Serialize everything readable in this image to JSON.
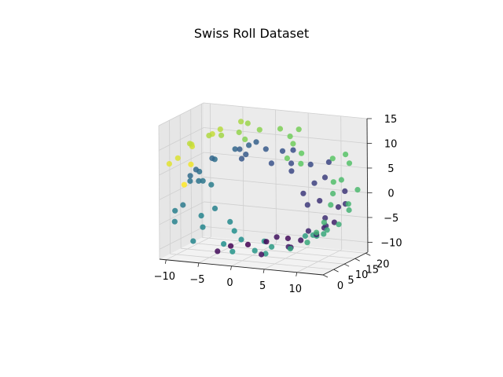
{
  "chart_data": {
    "type": "scatter",
    "projection": "3d",
    "title": "Swiss Roll Dataset",
    "xlabel": "",
    "ylabel": "",
    "zlabel": "",
    "grid": true,
    "colormap": "viridis",
    "color_by": "roll parameter t",
    "colormap_stops": [
      "#440154",
      "#3b528b",
      "#21908d",
      "#5dc963",
      "#fde725"
    ],
    "xlim": [
      -11,
      14
    ],
    "ylim": [
      0,
      21
    ],
    "zlim": [
      -12,
      15
    ],
    "x_ticks": [
      "−10",
      "−5",
      "0",
      "5",
      "10"
    ],
    "y_ticks": [
      "0",
      "5",
      "10",
      "15",
      "20"
    ],
    "z_ticks": [
      "−10",
      "−5",
      "0",
      "5",
      "10",
      "15"
    ],
    "x_tick_values": [
      -10,
      -5,
      0,
      5,
      10
    ],
    "y_tick_values": [
      0,
      5,
      10,
      15,
      20
    ],
    "z_tick_values": [
      -10,
      -5,
      0,
      5,
      10,
      15
    ],
    "points": [
      {
        "x": -1.8,
        "y": 5.2,
        "z": -9.3,
        "t": 5.1
      },
      {
        "x": 1.2,
        "y": 12.7,
        "z": -9.7,
        "t": 5.2
      },
      {
        "x": 4.3,
        "y": 0.9,
        "z": -9.3,
        "t": 5.4
      },
      {
        "x": 6.9,
        "y": 11.4,
        "z": -8.4,
        "t": 5.5
      },
      {
        "x": 9.2,
        "y": 20.1,
        "z": -6.4,
        "t": 5.9
      },
      {
        "x": 10.3,
        "y": 4.6,
        "z": -4.6,
        "t": 6.0
      },
      {
        "x": 11.1,
        "y": 16.2,
        "z": -2.2,
        "t": 6.2
      },
      {
        "x": 11.0,
        "y": 7.8,
        "z": 0.9,
        "t": 6.4
      },
      {
        "x": 10.3,
        "y": 2.3,
        "z": 3.5,
        "t": 6.6
      },
      {
        "x": 8.8,
        "y": 18.9,
        "z": 6.0,
        "t": 6.9
      },
      {
        "x": 6.3,
        "y": 9.0,
        "z": 7.6,
        "t": 7.1
      },
      {
        "x": 3.3,
        "y": 14.1,
        "z": 8.6,
        "t": 7.4
      },
      {
        "x": 0.2,
        "y": 6.4,
        "z": 9.2,
        "t": 7.6
      },
      {
        "x": -3.0,
        "y": 17.6,
        "z": 8.2,
        "t": 7.9
      },
      {
        "x": -5.9,
        "y": 1.7,
        "z": 6.4,
        "t": 8.1
      },
      {
        "x": -8.2,
        "y": 10.3,
        "z": 3.8,
        "t": 8.4
      },
      {
        "x": -9.3,
        "y": 15.3,
        "z": 0.7,
        "t": 8.6
      },
      {
        "x": -9.6,
        "y": 3.1,
        "z": -2.7,
        "t": 8.9
      },
      {
        "x": -8.6,
        "y": 12.3,
        "z": -5.6,
        "t": 9.1
      },
      {
        "x": -6.5,
        "y": 19.3,
        "z": -8.1,
        "t": 9.3
      },
      {
        "x": -3.6,
        "y": 7.4,
        "z": -9.6,
        "t": 9.5
      },
      {
        "x": 0.2,
        "y": 14.8,
        "z": -10.2,
        "t": 9.8
      },
      {
        "x": 3.9,
        "y": 4.1,
        "z": -9.9,
        "t": 10.0
      },
      {
        "x": 7.5,
        "y": 17.0,
        "z": -8.7,
        "t": 10.3
      },
      {
        "x": 10.5,
        "y": 11.1,
        "z": -6.6,
        "t": 10.5
      },
      {
        "x": 12.6,
        "y": 1.3,
        "z": -3.9,
        "t": 10.8
      },
      {
        "x": 13.5,
        "y": 13.6,
        "z": -0.7,
        "t": 11.0
      },
      {
        "x": 13.4,
        "y": 6.7,
        "z": 2.9,
        "t": 11.2
      },
      {
        "x": 12.1,
        "y": 18.4,
        "z": 6.3,
        "t": 11.5
      },
      {
        "x": 9.5,
        "y": 3.7,
        "z": 9.1,
        "t": 11.8
      },
      {
        "x": 6.2,
        "y": 10.2,
        "z": 11.3,
        "t": 12.1
      },
      {
        "x": 2.4,
        "y": 15.8,
        "z": 12.6,
        "t": 12.3
      },
      {
        "x": -1.5,
        "y": 8.5,
        "z": 13.0,
        "t": 12.6
      },
      {
        "x": -5.1,
        "y": 20.4,
        "z": 12.1,
        "t": 12.9
      },
      {
        "x": -8.0,
        "y": 5.3,
        "z": 10.6,
        "t": 13.2
      },
      {
        "x": -10.1,
        "y": 12.8,
        "z": 8.1,
        "t": 13.5
      },
      {
        "x": -2.9,
        "y": 2.4,
        "z": -9.9,
        "t": 5.3
      },
      {
        "x": 0.6,
        "y": 19.4,
        "z": -10.3,
        "t": 5.5
      },
      {
        "x": 5.6,
        "y": 9.6,
        "z": -9.5,
        "t": 5.8
      },
      {
        "x": 8.1,
        "y": 15.1,
        "z": -7.9,
        "t": 6.0
      },
      {
        "x": 10.4,
        "y": 12.5,
        "z": -5.3,
        "t": 6.2
      },
      {
        "x": 11.6,
        "y": 18.0,
        "z": -1.9,
        "t": 6.4
      },
      {
        "x": 11.5,
        "y": 0.6,
        "z": 1.7,
        "t": 6.6
      },
      {
        "x": 10.5,
        "y": 6.9,
        "z": 4.6,
        "t": 6.8
      },
      {
        "x": 8.3,
        "y": 11.9,
        "z": 7.0,
        "t": 7.1
      },
      {
        "x": 5.1,
        "y": 3.4,
        "z": 8.7,
        "t": 7.3
      },
      {
        "x": 1.8,
        "y": 10.9,
        "z": 9.5,
        "t": 7.6
      },
      {
        "x": -1.6,
        "y": 16.8,
        "z": 9.2,
        "t": 7.8
      },
      {
        "x": -4.8,
        "y": 5.9,
        "z": 7.9,
        "t": 8.0
      },
      {
        "x": -7.2,
        "y": 14.5,
        "z": 5.5,
        "t": 8.3
      },
      {
        "x": -8.9,
        "y": 8.1,
        "z": 2.3,
        "t": 8.5
      },
      {
        "x": -9.5,
        "y": 19.8,
        "z": -1.1,
        "t": 8.8
      },
      {
        "x": -9.0,
        "y": 1.1,
        "z": -4.4,
        "t": 9.0
      },
      {
        "x": -7.4,
        "y": 9.3,
        "z": -7.1,
        "t": 9.2
      },
      {
        "x": -4.9,
        "y": 16.4,
        "z": -9.1,
        "t": 9.5
      },
      {
        "x": -1.4,
        "y": 4.8,
        "z": -10.3,
        "t": 9.7
      },
      {
        "x": 2.3,
        "y": 11.8,
        "z": -10.4,
        "t": 10.0
      },
      {
        "x": 5.9,
        "y": 20.2,
        "z": -9.4,
        "t": 10.2
      },
      {
        "x": 9.3,
        "y": 7.1,
        "z": -7.6,
        "t": 10.5
      },
      {
        "x": 11.9,
        "y": 13.9,
        "z": -5.1,
        "t": 10.7
      },
      {
        "x": 13.3,
        "y": 2.8,
        "z": -2.1,
        "t": 10.9
      },
      {
        "x": 13.6,
        "y": 17.6,
        "z": 1.3,
        "t": 11.2
      },
      {
        "x": 12.8,
        "y": 8.8,
        "z": 4.7,
        "t": 11.4
      },
      {
        "x": 10.9,
        "y": 14.3,
        "z": 8.0,
        "t": 11.7
      },
      {
        "x": 8.0,
        "y": 1.9,
        "z": 10.4,
        "t": 12.0
      },
      {
        "x": 4.3,
        "y": 18.7,
        "z": 12.1,
        "t": 12.2
      },
      {
        "x": 0.5,
        "y": 12.0,
        "z": 13.0,
        "t": 12.5
      },
      {
        "x": -3.4,
        "y": 6.0,
        "z": 12.7,
        "t": 12.8
      },
      {
        "x": -6.7,
        "y": 15.6,
        "z": 11.4,
        "t": 13.1
      },
      {
        "x": -9.2,
        "y": 9.8,
        "z": 9.3,
        "t": 13.4
      },
      {
        "x": -10.4,
        "y": 3.0,
        "z": 6.7,
        "t": 13.7
      },
      {
        "x": -0.3,
        "y": 8.7,
        "z": -9.6,
        "t": 5.0
      },
      {
        "x": 3.0,
        "y": 17.3,
        "z": -9.8,
        "t": 5.3
      },
      {
        "x": 7.8,
        "y": 4.0,
        "z": -8.1,
        "t": 5.7
      },
      {
        "x": 9.9,
        "y": 13.2,
        "z": -5.9,
        "t": 6.0
      },
      {
        "x": 11.3,
        "y": 9.4,
        "z": -2.9,
        "t": 6.3
      },
      {
        "x": 11.2,
        "y": 19.0,
        "z": 0.4,
        "t": 6.5
      },
      {
        "x": 9.8,
        "y": 14.0,
        "z": 4.1,
        "t": 6.7
      },
      {
        "x": 7.4,
        "y": 5.7,
        "z": 6.9,
        "t": 7.0
      },
      {
        "x": 4.3,
        "y": 16.0,
        "z": 8.5,
        "t": 7.2
      },
      {
        "x": 1.0,
        "y": 2.0,
        "z": 9.4,
        "t": 7.5
      },
      {
        "x": -2.4,
        "y": 11.5,
        "z": 8.8,
        "t": 7.7
      },
      {
        "x": -5.3,
        "y": 18.2,
        "z": 7.0,
        "t": 8.0
      },
      {
        "x": -7.7,
        "y": 4.5,
        "z": 4.3,
        "t": 8.2
      },
      {
        "x": -9.2,
        "y": 13.0,
        "z": 1.2,
        "t": 8.5
      },
      {
        "x": -9.4,
        "y": 6.2,
        "z": -2.2,
        "t": 8.7
      },
      {
        "x": -8.3,
        "y": 17.8,
        "z": -5.3,
        "t": 9.0
      },
      {
        "x": -6.1,
        "y": 0.8,
        "z": -7.9,
        "t": 9.2
      },
      {
        "x": -2.7,
        "y": 12.9,
        "z": -9.8,
        "t": 9.5
      },
      {
        "x": 1.1,
        "y": 7.6,
        "z": -10.4,
        "t": 9.8
      },
      {
        "x": 4.9,
        "y": 19.6,
        "z": -9.6,
        "t": 10.1
      },
      {
        "x": 8.3,
        "y": 2.2,
        "z": -7.9,
        "t": 10.3
      },
      {
        "x": 11.2,
        "y": 10.6,
        "z": -5.6,
        "t": 10.6
      },
      {
        "x": 13.0,
        "y": 15.4,
        "z": -2.4,
        "t": 10.9
      },
      {
        "x": 13.6,
        "y": 5.0,
        "z": 1.0,
        "t": 11.1
      },
      {
        "x": 12.9,
        "y": 12.2,
        "z": 4.4,
        "t": 11.3
      },
      {
        "x": 11.0,
        "y": 20.0,
        "z": 7.6,
        "t": 11.6
      },
      {
        "x": 8.2,
        "y": 8.0,
        "z": 10.1,
        "t": 11.9
      },
      {
        "x": 4.7,
        "y": 13.4,
        "z": 11.9,
        "t": 12.1
      },
      {
        "x": 0.9,
        "y": 3.9,
        "z": 12.9,
        "t": 12.4
      },
      {
        "x": -2.9,
        "y": 16.9,
        "z": 12.8,
        "t": 12.7
      },
      {
        "x": -6.3,
        "y": 9.1,
        "z": 11.6,
        "t": 13.0
      },
      {
        "x": -8.9,
        "y": 18.6,
        "z": 9.5,
        "t": 13.3
      },
      {
        "x": -10.5,
        "y": 7.3,
        "z": 6.9,
        "t": 13.6
      },
      {
        "x": -11.0,
        "y": 14.9,
        "z": 3.9,
        "t": 13.9
      },
      {
        "x": -10.6,
        "y": 10.5,
        "z": 0.8,
        "t": 14.1
      }
    ]
  }
}
